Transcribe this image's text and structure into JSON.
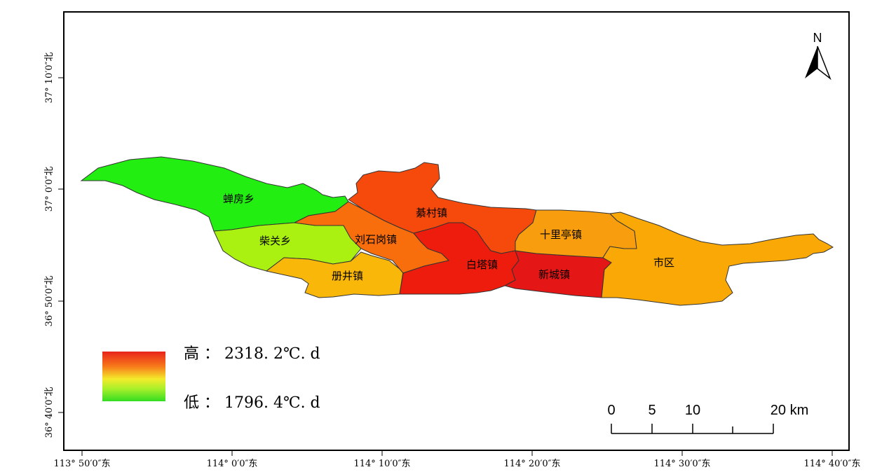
{
  "colors": {
    "frame": "#000000",
    "high": "#e8231a",
    "low": "#33dd22",
    "c_chanfang": "#22ee11",
    "c_chaiguan": "#aaf011",
    "c_cejing": "#f9b70a",
    "c_liushigang": "#f96e0c",
    "c_qincun": "#f64a0d",
    "c_baita": "#ed1c0d",
    "c_xincheng": "#e41616",
    "c_shiliting": "#f89d0d",
    "c_shiqu": "#f9a806"
  },
  "regions": [
    {
      "id": "chanfang",
      "name": "蝉房乡",
      "value_rank": "lowest"
    },
    {
      "id": "chaiguan",
      "name": "柴关乡"
    },
    {
      "id": "cejing",
      "name": "册井镇"
    },
    {
      "id": "liushigang",
      "name": "刘石岗镇"
    },
    {
      "id": "qincun",
      "name": "綦村镇"
    },
    {
      "id": "baita",
      "name": "白塔镇"
    },
    {
      "id": "xincheng",
      "name": "新城镇"
    },
    {
      "id": "shiliting",
      "name": "十里亭镇"
    },
    {
      "id": "shiqu",
      "name": "市区"
    }
  ],
  "axes": {
    "x_ticks": [
      "113° 50′0″东",
      "114° 0′0″东",
      "114° 10′0″东",
      "114° 20′0″东",
      "114° 30′0″东",
      "114° 40′0″东"
    ],
    "y_ticks": [
      "37° 10′0″北",
      "37° 0′0″北",
      "36° 50′0″北",
      "36° 40′0″北"
    ]
  },
  "legend": {
    "high": "高 ： 2318. 2℃. d",
    "low": "低 ： 1796. 4℃. d"
  },
  "scale_bar": {
    "labels": [
      "0",
      "5",
      "10",
      "20 km"
    ]
  },
  "north_arrow": {
    "label": "N"
  }
}
